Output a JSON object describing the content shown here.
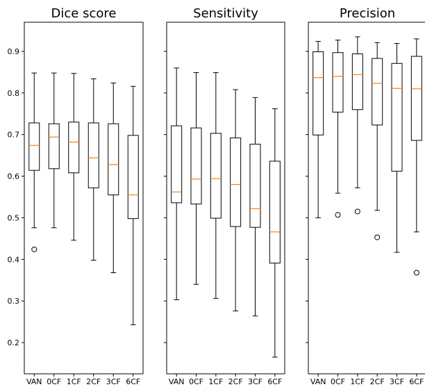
{
  "colors": {
    "median": "#ff7f0e",
    "box": "#000000",
    "background": "#ffffff"
  },
  "chart_data": [
    {
      "type": "box",
      "title": "Dice score",
      "categories": [
        "VAN",
        "0CF",
        "1CF",
        "2CF",
        "3CF",
        "6CF"
      ],
      "ylim": [
        0.125,
        0.97
      ],
      "yticks": [
        0.2,
        0.3,
        0.4,
        0.5,
        0.6,
        0.7,
        0.8,
        0.9
      ],
      "show_ytick_labels": true,
      "boxes": [
        {
          "whislo": 0.476,
          "q1": 0.614,
          "med": 0.674,
          "q3": 0.728,
          "whishi": 0.848,
          "fliers": [
            0.424
          ]
        },
        {
          "whislo": 0.476,
          "q1": 0.618,
          "med": 0.694,
          "q3": 0.726,
          "whishi": 0.848,
          "fliers": []
        },
        {
          "whislo": 0.446,
          "q1": 0.608,
          "med": 0.682,
          "q3": 0.73,
          "whishi": 0.847,
          "fliers": []
        },
        {
          "whislo": 0.398,
          "q1": 0.572,
          "med": 0.644,
          "q3": 0.728,
          "whishi": 0.834,
          "fliers": []
        },
        {
          "whislo": 0.368,
          "q1": 0.555,
          "med": 0.628,
          "q3": 0.726,
          "whishi": 0.824,
          "fliers": []
        },
        {
          "whislo": 0.243,
          "q1": 0.498,
          "med": 0.555,
          "q3": 0.698,
          "whishi": 0.816,
          "fliers": []
        }
      ]
    },
    {
      "type": "box",
      "title": "Sensitivity",
      "categories": [
        "VAN",
        "0CF",
        "1CF",
        "2CF",
        "3CF",
        "6CF"
      ],
      "ylim": [
        0.125,
        0.97
      ],
      "yticks": [
        0.2,
        0.3,
        0.4,
        0.5,
        0.6,
        0.7,
        0.8,
        0.9
      ],
      "show_ytick_labels": false,
      "boxes": [
        {
          "whislo": 0.303,
          "q1": 0.536,
          "med": 0.562,
          "q3": 0.721,
          "whishi": 0.86,
          "fliers": []
        },
        {
          "whislo": 0.34,
          "q1": 0.533,
          "med": 0.593,
          "q3": 0.716,
          "whishi": 0.849,
          "fliers": []
        },
        {
          "whislo": 0.306,
          "q1": 0.499,
          "med": 0.594,
          "q3": 0.703,
          "whishi": 0.849,
          "fliers": []
        },
        {
          "whislo": 0.276,
          "q1": 0.479,
          "med": 0.58,
          "q3": 0.692,
          "whishi": 0.808,
          "fliers": []
        },
        {
          "whislo": 0.264,
          "q1": 0.477,
          "med": 0.522,
          "q3": 0.677,
          "whishi": 0.789,
          "fliers": []
        },
        {
          "whislo": 0.165,
          "q1": 0.391,
          "med": 0.466,
          "q3": 0.636,
          "whishi": 0.762,
          "fliers": []
        }
      ]
    },
    {
      "type": "box",
      "title": "Precision",
      "categories": [
        "VAN",
        "0CF",
        "1CF",
        "2CF",
        "3CF",
        "6CF"
      ],
      "ylim": [
        0.125,
        0.97
      ],
      "yticks": [
        0.2,
        0.3,
        0.4,
        0.5,
        0.6,
        0.7,
        0.8,
        0.9
      ],
      "show_ytick_labels": false,
      "boxes": [
        {
          "whislo": 0.5,
          "q1": 0.699,
          "med": 0.837,
          "q3": 0.899,
          "whishi": 0.924,
          "fliers": []
        },
        {
          "whislo": 0.559,
          "q1": 0.754,
          "med": 0.84,
          "q3": 0.897,
          "whishi": 0.927,
          "fliers": [
            0.507
          ]
        },
        {
          "whislo": 0.572,
          "q1": 0.76,
          "med": 0.844,
          "q3": 0.894,
          "whishi": 0.935,
          "fliers": [
            0.515
          ]
        },
        {
          "whislo": 0.518,
          "q1": 0.723,
          "med": 0.823,
          "q3": 0.883,
          "whishi": 0.921,
          "fliers": [
            0.453
          ]
        },
        {
          "whislo": 0.417,
          "q1": 0.612,
          "med": 0.811,
          "q3": 0.871,
          "whishi": 0.919,
          "fliers": []
        },
        {
          "whislo": 0.466,
          "q1": 0.686,
          "med": 0.81,
          "q3": 0.888,
          "whishi": 0.93,
          "fliers": [
            0.368
          ]
        }
      ]
    }
  ]
}
